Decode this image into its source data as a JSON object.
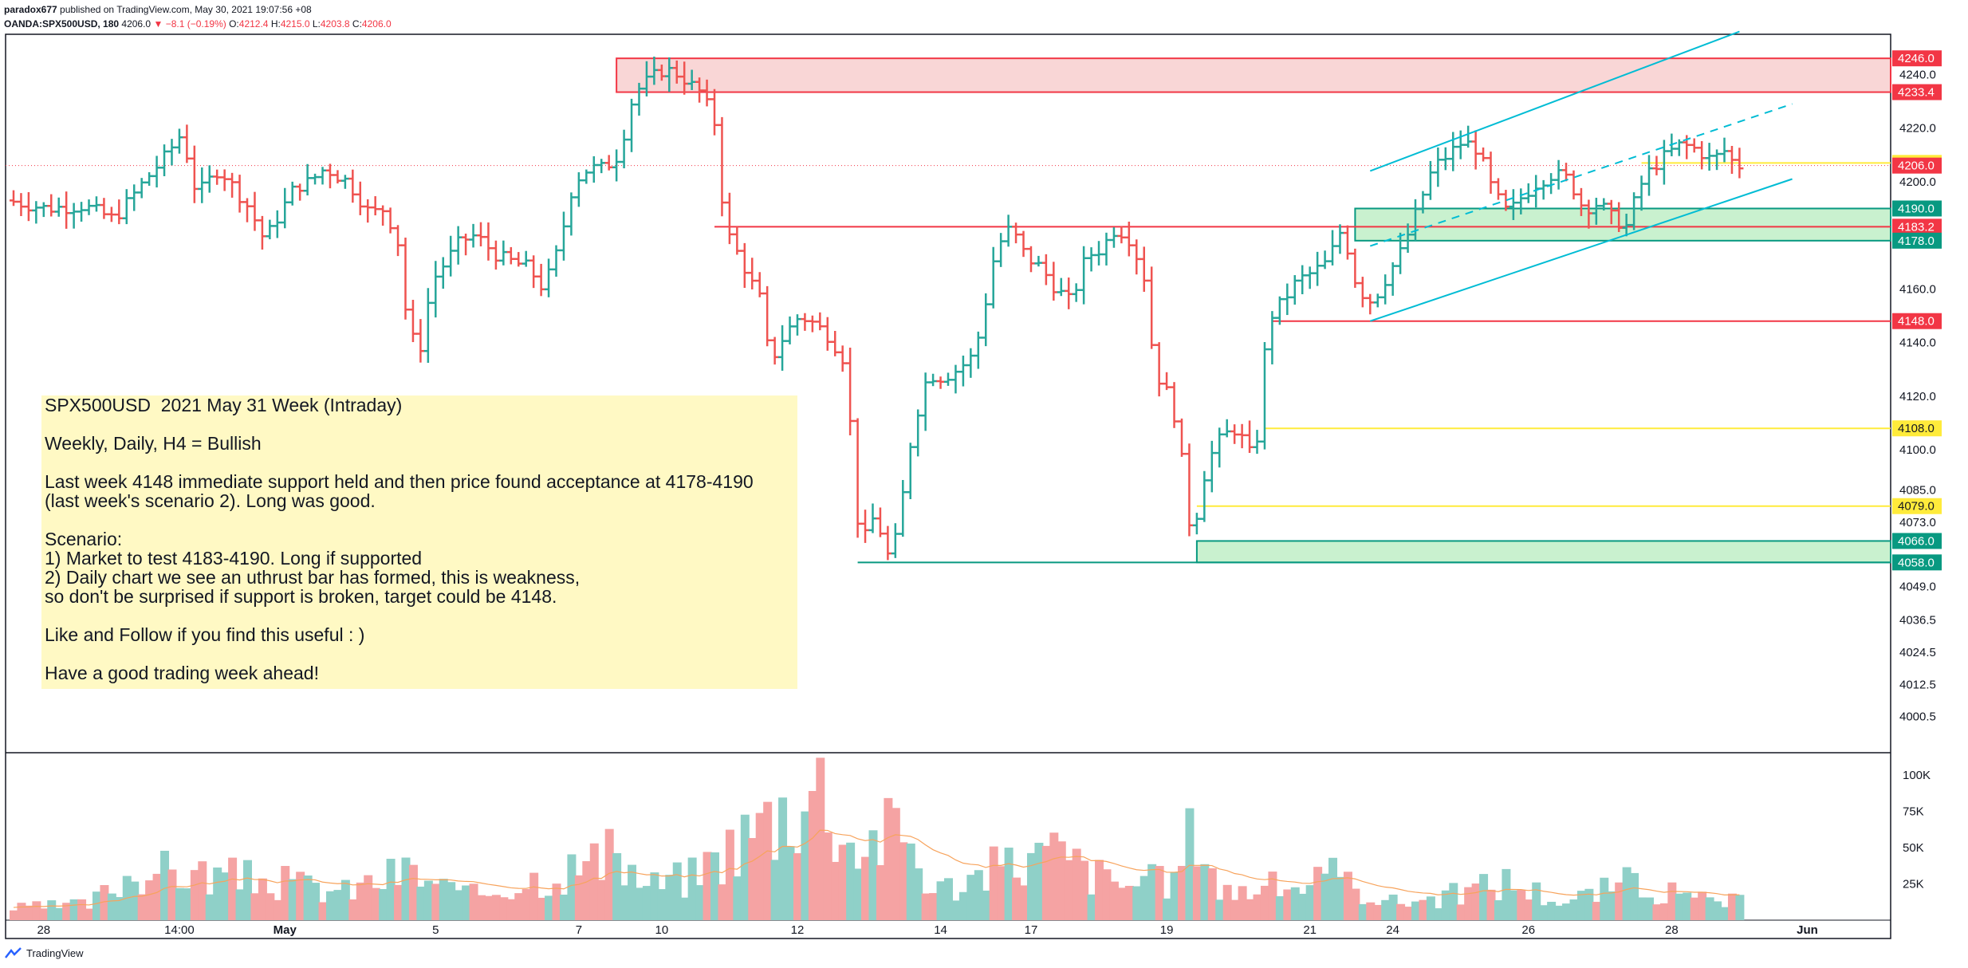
{
  "header": {
    "author": "paradox677",
    "published_on": "published on TradingView.com, May 30, 2021 19:07:56 +08",
    "symbol": "OANDA:SPX500USD, 180",
    "last": "4206.0",
    "change": "−8.1 (−0.19%)",
    "o_label": "O:",
    "o_value": "4212.4",
    "h_label": "H:",
    "h_value": "4215.0",
    "l_label": "L:",
    "l_value": "4203.8",
    "c_label": "C:",
    "c_value": "4206.0",
    "down_arrow": "▼"
  },
  "note": {
    "text": "SPX500USD  2021 May 31 Week (Intraday)\n\nWeekly, Daily, H4 = Bullish\n\nLast week 4148 immediate support held and then price found acceptance at 4178-4190\n(last week's scenario 2). Long was good.\n\nScenario:\n1) Market to test 4183-4190. Long if supported\n2) Daily chart we see an uthrust bar has formed, this is weakness,\nso don't be surprised if support is broken, target could be 4148.\n\nLike and Follow if you find this useful : )\n\nHave a good trading week ahead!"
  },
  "footer": {
    "brand": "TradingView"
  },
  "colors": {
    "up": "#26a69a",
    "down": "#ef5350",
    "vol_up": "#8fd0c8",
    "vol_down": "#f5a3a3",
    "resistance_fill": "#f9d6d6",
    "support_fill": "#c9f1cf",
    "channel": "#00bcd4",
    "level_red": "#f23645",
    "level_yellow": "#ffeb3b",
    "volume_ma": "#f7a35c"
  },
  "chart_data": {
    "type": "bar",
    "title": "OANDA:SPX500USD, 180",
    "price_axis": {
      "range": [
        3990,
        4252
      ],
      "ticks": [
        {
          "v": 4240.0,
          "label": "4240.0"
        },
        {
          "v": 4220.0,
          "label": "4220.0"
        },
        {
          "v": 4200.0,
          "label": "4200.0"
        },
        {
          "v": 4160.0,
          "label": "4160.0"
        },
        {
          "v": 4140.0,
          "label": "4140.0"
        },
        {
          "v": 4120.0,
          "label": "4120.0"
        },
        {
          "v": 4100.0,
          "label": "4100.0"
        },
        {
          "v": 4085.0,
          "label": "4085.0"
        },
        {
          "v": 4073.0,
          "label": "4073.0"
        },
        {
          "v": 4049.0,
          "label": "4049.0"
        },
        {
          "v": 4036.5,
          "label": "4036.5"
        },
        {
          "v": 4024.5,
          "label": "4024.5"
        },
        {
          "v": 4012.5,
          "label": "4012.5"
        },
        {
          "v": 4000.5,
          "label": "4000.5"
        }
      ]
    },
    "volume_axis": {
      "range": [
        0,
        110000
      ],
      "ticks": [
        {
          "v": 100000,
          "label": "100K"
        },
        {
          "v": 75000,
          "label": "75K"
        },
        {
          "v": 50000,
          "label": "50K"
        },
        {
          "v": 25000,
          "label": "25K"
        }
      ]
    },
    "time_axis": {
      "total_bars": 249,
      "labels": [
        {
          "bar": 4,
          "label": "28"
        },
        {
          "bar": 22,
          "label": "14:00"
        },
        {
          "bar": 36,
          "label": "May"
        },
        {
          "bar": 56,
          "label": "5"
        },
        {
          "bar": 75,
          "label": "7"
        },
        {
          "bar": 86,
          "label": "10"
        },
        {
          "bar": 104,
          "label": "12"
        },
        {
          "bar": 123,
          "label": "14"
        },
        {
          "bar": 135,
          "label": "17"
        },
        {
          "bar": 153,
          "label": "19"
        },
        {
          "bar": 172,
          "label": "21"
        },
        {
          "bar": 183,
          "label": "24"
        },
        {
          "bar": 201,
          "label": "26"
        },
        {
          "bar": 220,
          "label": "28"
        },
        {
          "bar": 238,
          "label": "Jun"
        }
      ]
    },
    "keypoints": [
      [
        0,
        4193
      ],
      [
        5,
        4190
      ],
      [
        10,
        4191
      ],
      [
        14,
        4186
      ],
      [
        18,
        4200
      ],
      [
        21,
        4210
      ],
      [
        23,
        4218
      ],
      [
        25,
        4195
      ],
      [
        28,
        4205
      ],
      [
        32,
        4190
      ],
      [
        34,
        4178
      ],
      [
        38,
        4198
      ],
      [
        40,
        4200
      ],
      [
        42,
        4205
      ],
      [
        45,
        4200
      ],
      [
        48,
        4188
      ],
      [
        50,
        4190
      ],
      [
        52,
        4175
      ],
      [
        53,
        4143
      ],
      [
        55,
        4138
      ],
      [
        56,
        4162
      ],
      [
        58,
        4170
      ],
      [
        60,
        4178
      ],
      [
        62,
        4180
      ],
      [
        65,
        4172
      ],
      [
        67,
        4170
      ],
      [
        69,
        4168
      ],
      [
        71,
        4160
      ],
      [
        73,
        4175
      ],
      [
        75,
        4200
      ],
      [
        77,
        4205
      ],
      [
        79,
        4205
      ],
      [
        81,
        4210
      ],
      [
        83,
        4233
      ],
      [
        85,
        4238
      ],
      [
        87,
        4242
      ],
      [
        89,
        4240
      ],
      [
        91,
        4235
      ],
      [
        92,
        4233
      ],
      [
        94,
        4220
      ],
      [
        95,
        4183
      ],
      [
        97,
        4172
      ],
      [
        99,
        4160
      ],
      [
        100,
        4155
      ],
      [
        101,
        4132
      ],
      [
        103,
        4143
      ],
      [
        105,
        4150
      ],
      [
        107,
        4147
      ],
      [
        109,
        4142
      ],
      [
        111,
        4133
      ],
      [
        112,
        4100
      ],
      [
        113,
        4063
      ],
      [
        115,
        4076
      ],
      [
        117,
        4058
      ],
      [
        118,
        4070
      ],
      [
        120,
        4108
      ],
      [
        122,
        4128
      ],
      [
        124,
        4127
      ],
      [
        126,
        4130
      ],
      [
        128,
        4135
      ],
      [
        129,
        4145
      ],
      [
        131,
        4175
      ],
      [
        133,
        4183
      ],
      [
        135,
        4172
      ],
      [
        137,
        4168
      ],
      [
        139,
        4160
      ],
      [
        141,
        4155
      ],
      [
        143,
        4172
      ],
      [
        145,
        4175
      ],
      [
        147,
        4183
      ],
      [
        149,
        4178
      ],
      [
        151,
        4162
      ],
      [
        152,
        4130
      ],
      [
        154,
        4120
      ],
      [
        155,
        4110
      ],
      [
        156,
        4090
      ],
      [
        157,
        4066
      ],
      [
        159,
        4095
      ],
      [
        161,
        4105
      ],
      [
        163,
        4108
      ],
      [
        165,
        4097
      ],
      [
        166,
        4108
      ],
      [
        167,
        4148
      ],
      [
        169,
        4155
      ],
      [
        171,
        4163
      ],
      [
        173,
        4166
      ],
      [
        175,
        4170
      ],
      [
        177,
        4183
      ],
      [
        179,
        4160
      ],
      [
        181,
        4155
      ],
      [
        183,
        4165
      ],
      [
        185,
        4175
      ],
      [
        187,
        4190
      ],
      [
        189,
        4205
      ],
      [
        191,
        4210
      ],
      [
        193,
        4215
      ],
      [
        195,
        4212
      ],
      [
        197,
        4196
      ],
      [
        199,
        4188
      ],
      [
        201,
        4195
      ],
      [
        203,
        4200
      ],
      [
        205,
        4203
      ],
      [
        207,
        4201
      ],
      [
        209,
        4190
      ],
      [
        211,
        4192
      ],
      [
        213,
        4186
      ],
      [
        215,
        4183
      ],
      [
        216,
        4196
      ],
      [
        218,
        4205
      ],
      [
        220,
        4210
      ],
      [
        222,
        4214
      ],
      [
        224,
        4212
      ],
      [
        226,
        4208
      ],
      [
        228,
        4212
      ],
      [
        229,
        4206
      ]
    ],
    "volume_keypoints": [
      [
        0,
        9000
      ],
      [
        10,
        12000
      ],
      [
        16,
        38000
      ],
      [
        24,
        36000
      ],
      [
        34,
        30000
      ],
      [
        44,
        22000
      ],
      [
        52,
        38000
      ],
      [
        60,
        18000
      ],
      [
        70,
        34000
      ],
      [
        80,
        48000
      ],
      [
        84,
        26000
      ],
      [
        90,
        34000
      ],
      [
        99,
        74000
      ],
      [
        107,
        104000
      ],
      [
        111,
        58000
      ],
      [
        118,
        70000
      ],
      [
        122,
        22000
      ],
      [
        133,
        45000
      ],
      [
        138,
        52000
      ],
      [
        146,
        28000
      ],
      [
        154,
        30000
      ],
      [
        157,
        78000
      ],
      [
        160,
        22000
      ],
      [
        168,
        26000
      ],
      [
        175,
        32000
      ],
      [
        183,
        14000
      ],
      [
        190,
        18000
      ],
      [
        198,
        30000
      ],
      [
        206,
        14000
      ],
      [
        215,
        30000
      ],
      [
        222,
        16000
      ],
      [
        229,
        14000
      ]
    ],
    "series": [
      {
        "name": "SPX500USD",
        "kind": "ohlc"
      },
      {
        "name": "Volume",
        "kind": "volume"
      }
    ],
    "zones": [
      {
        "type": "resistance",
        "from_bar": 80,
        "top": 4246.0,
        "bottom": 4233.4
      },
      {
        "type": "support",
        "from_bar": 178,
        "top": 4190.0,
        "bottom": 4178.0
      },
      {
        "type": "support",
        "from_bar": 157,
        "top": 4066.0,
        "bottom": 4058.0
      }
    ],
    "levels": [
      {
        "value": 4183.2,
        "color": "red",
        "from_bar": 93
      },
      {
        "value": 4148.0,
        "color": "red",
        "from_bar": 167
      },
      {
        "value": 4108.0,
        "color": "yellow",
        "from_bar": 166
      },
      {
        "value": 4079.0,
        "color": "yellow",
        "from_bar": 157
      },
      {
        "value": 4207.0,
        "color": "yellow",
        "from_bar": 216
      },
      {
        "value": 4058.0,
        "color": "teal",
        "from_bar": 112
      }
    ],
    "channel": {
      "lower": [
        [
          180,
          4148
        ],
        [
          236,
          4201
        ]
      ],
      "upper": [
        [
          180,
          4204
        ],
        [
          229,
          4256
        ]
      ],
      "mid": [
        [
          180,
          4176
        ],
        [
          236,
          4229
        ]
      ]
    },
    "last_price_line": 4206.0,
    "badges": [
      {
        "label": "4246.0",
        "value": 4246.0,
        "bg": "#f23645",
        "fg": "#ffffff"
      },
      {
        "label": "4233.4",
        "value": 4233.4,
        "bg": "#f23645",
        "fg": "#ffffff"
      },
      {
        "label": "4207.0",
        "value": 4207.0,
        "bg": "#ffeb3b",
        "fg": "#131722"
      },
      {
        "label": "4206.0",
        "value": 4206.0,
        "bg": "#f23645",
        "fg": "#ffffff"
      },
      {
        "label": "4190.0",
        "value": 4190.0,
        "bg": "#089981",
        "fg": "#ffffff"
      },
      {
        "label": "4183.2",
        "value": 4183.2,
        "bg": "#f23645",
        "fg": "#ffffff"
      },
      {
        "label": "4178.0",
        "value": 4178.0,
        "bg": "#089981",
        "fg": "#ffffff"
      },
      {
        "label": "4148.0",
        "value": 4148.0,
        "bg": "#f23645",
        "fg": "#ffffff"
      },
      {
        "label": "4108.0",
        "value": 4108.0,
        "bg": "#ffeb3b",
        "fg": "#131722"
      },
      {
        "label": "4079.0",
        "value": 4079.0,
        "bg": "#ffeb3b",
        "fg": "#131722"
      },
      {
        "label": "4066.0",
        "value": 4066.0,
        "bg": "#089981",
        "fg": "#ffffff"
      },
      {
        "label": "4058.0",
        "value": 4058.0,
        "bg": "#089981",
        "fg": "#ffffff"
      }
    ]
  }
}
